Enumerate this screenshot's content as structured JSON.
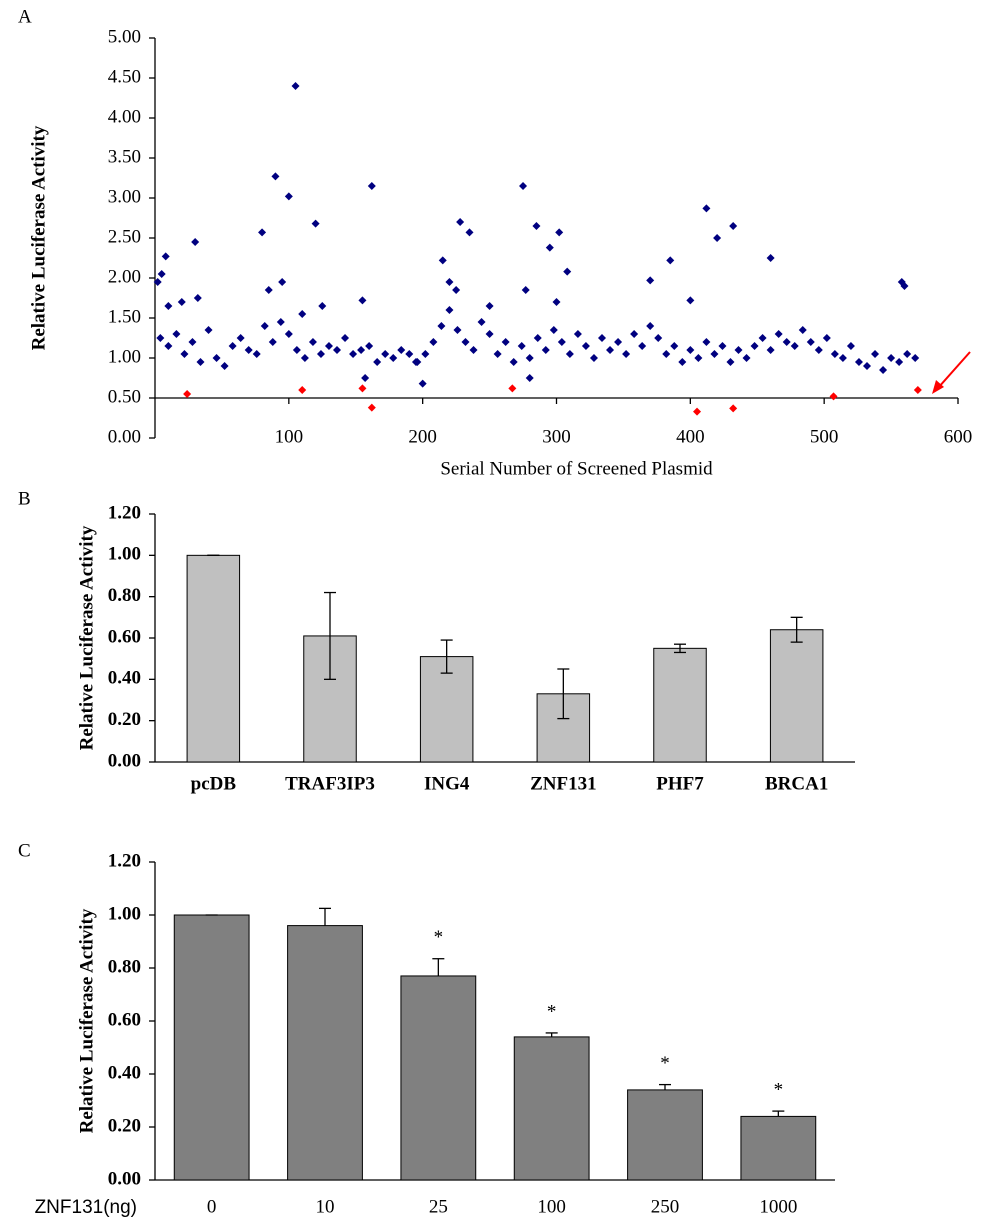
{
  "chart_data": [
    {
      "type": "scatter",
      "panel": "A",
      "ylabel": "Relative Luciferase Activity",
      "xlabel": "Serial Number of Screened Plasmid",
      "xlim": [
        0,
        600
      ],
      "xticks": [
        100,
        200,
        300,
        400,
        500,
        600
      ],
      "ylim": [
        0,
        5
      ],
      "yticks": [
        {
          "value": 0,
          "label": "0.00"
        },
        {
          "value": 0.5,
          "label": "0.50"
        },
        {
          "value": 1,
          "label": "1.00"
        },
        {
          "value": 1.5,
          "label": "1.50"
        },
        {
          "value": 2,
          "label": "2.00"
        },
        {
          "value": 2.5,
          "label": "2.50"
        },
        {
          "value": 3,
          "label": "3.00"
        },
        {
          "value": 3.5,
          "label": "3.50"
        },
        {
          "value": 4,
          "label": "4.00"
        },
        {
          "value": 4.5,
          "label": "4.50"
        },
        {
          "value": 5,
          "label": "5.00"
        }
      ],
      "xaxis_at": 0.5,
      "series": [
        {
          "color": "#000080",
          "x": [
            2,
            5,
            8,
            10,
            30,
            32,
            20,
            80,
            85,
            90,
            95,
            100,
            105,
            110,
            120,
            125,
            155,
            162,
            200,
            215,
            220,
            225,
            228,
            235,
            250,
            275,
            277,
            285,
            295,
            302,
            308,
            300,
            370,
            385,
            400,
            412,
            420,
            432,
            460,
            558,
            560,
            157,
            195,
            280,
            4,
            10,
            16,
            22,
            28,
            34,
            40,
            46,
            52,
            58,
            64,
            70,
            76,
            82,
            88,
            94,
            100,
            106,
            112,
            118,
            124,
            130,
            136,
            142,
            148,
            154,
            160,
            166,
            172,
            178,
            184,
            190,
            196,
            202,
            208,
            214,
            220,
            226,
            232,
            238,
            244,
            250,
            256,
            262,
            268,
            274,
            280,
            286,
            292,
            298,
            304,
            310,
            316,
            322,
            328,
            334,
            340,
            346,
            352,
            358,
            364,
            370,
            376,
            382,
            388,
            394,
            400,
            406,
            412,
            418,
            424,
            430,
            436,
            442,
            448,
            454,
            460,
            466,
            472,
            478,
            484,
            490,
            496,
            502,
            508,
            514,
            520,
            526,
            532,
            538,
            544,
            550,
            556,
            562,
            568
          ],
          "values": [
            1.95,
            2.05,
            2.27,
            1.65,
            2.45,
            1.75,
            1.7,
            2.57,
            1.85,
            3.27,
            1.95,
            3.02,
            4.4,
            1.55,
            2.68,
            1.65,
            1.72,
            3.15,
            0.68,
            2.22,
            1.95,
            1.85,
            2.7,
            2.57,
            1.65,
            3.15,
            1.85,
            2.65,
            2.38,
            2.57,
            2.08,
            1.7,
            1.97,
            2.22,
            1.72,
            2.87,
            2.5,
            2.65,
            2.25,
            1.95,
            1.9,
            0.75,
            0.95,
            0.75,
            1.25,
            1.15,
            1.3,
            1.05,
            1.2,
            0.95,
            1.35,
            1.0,
            0.9,
            1.15,
            1.25,
            1.1,
            1.05,
            1.4,
            1.2,
            1.45,
            1.3,
            1.1,
            1.0,
            1.2,
            1.05,
            1.15,
            1.1,
            1.25,
            1.05,
            1.1,
            1.15,
            0.95,
            1.05,
            1.0,
            1.1,
            1.05,
            0.95,
            1.05,
            1.2,
            1.4,
            1.6,
            1.35,
            1.2,
            1.1,
            1.45,
            1.3,
            1.05,
            1.2,
            0.95,
            1.15,
            1.0,
            1.25,
            1.1,
            1.35,
            1.2,
            1.05,
            1.3,
            1.15,
            1.0,
            1.25,
            1.1,
            1.2,
            1.05,
            1.3,
            1.15,
            1.4,
            1.25,
            1.05,
            1.15,
            0.95,
            1.1,
            1.0,
            1.2,
            1.05,
            1.15,
            0.95,
            1.1,
            1.0,
            1.15,
            1.25,
            1.1,
            1.3,
            1.2,
            1.15,
            1.35,
            1.2,
            1.1,
            1.25,
            1.05,
            1.0,
            1.15,
            0.95,
            0.9,
            1.05,
            0.85,
            1.0,
            0.95,
            1.05,
            1.0
          ]
        },
        {
          "color": "#ff0000",
          "x": [
            24,
            110,
            155,
            162,
            267,
            405,
            432,
            507,
            570
          ],
          "values": [
            0.55,
            0.6,
            0.62,
            0.38,
            0.62,
            0.33,
            0.37,
            0.52,
            0.6
          ]
        }
      ]
    },
    {
      "type": "bar",
      "panel": "B",
      "ylabel": "Relative Luciferase Activity",
      "categories": [
        "pcDB",
        "TRAF3IP3",
        "ING4",
        "ZNF131",
        "PHF7",
        "BRCA1"
      ],
      "values": [
        1.0,
        0.61,
        0.51,
        0.33,
        0.55,
        0.64
      ],
      "errors": [
        0,
        0.21,
        0.08,
        0.12,
        0.02,
        0.06
      ],
      "error_bars": "both",
      "color": "#c0c0c0",
      "ylim": [
        0,
        1.2
      ],
      "yticks": [
        {
          "value": 0,
          "label": "0.00"
        },
        {
          "value": 0.2,
          "label": "0.20"
        },
        {
          "value": 0.4,
          "label": "0.40"
        },
        {
          "value": 0.6,
          "label": "0.60"
        },
        {
          "value": 0.8,
          "label": "0.80"
        },
        {
          "value": 1,
          "label": "1.00"
        },
        {
          "value": 1.2,
          "label": "1.20"
        }
      ]
    },
    {
      "type": "bar",
      "panel": "C",
      "ylabel": "Relative Luciferase Activity",
      "xlabel": "ZNF131(ng)",
      "categories": [
        "0",
        "10",
        "25",
        "100",
        "250",
        "1000"
      ],
      "values": [
        1.0,
        0.96,
        0.77,
        0.54,
        0.34,
        0.24
      ],
      "errors": [
        0,
        0.065,
        0.065,
        0.015,
        0.02,
        0.02
      ],
      "error_bars": "up",
      "color": "#808080",
      "annotations": [
        {
          "category": "25",
          "text": "*"
        },
        {
          "category": "100",
          "text": "*"
        },
        {
          "category": "250",
          "text": "*"
        },
        {
          "category": "1000",
          "text": "*"
        }
      ],
      "ylim": [
        0,
        1.2
      ],
      "yticks": [
        {
          "value": 0,
          "label": "0.00"
        },
        {
          "value": 0.2,
          "label": "0.20"
        },
        {
          "value": 0.4,
          "label": "0.40"
        },
        {
          "value": 0.6,
          "label": "0.60"
        },
        {
          "value": 0.8,
          "label": "0.80"
        },
        {
          "value": 1,
          "label": "1.00"
        },
        {
          "value": 1.2,
          "label": "1.20"
        }
      ]
    }
  ]
}
